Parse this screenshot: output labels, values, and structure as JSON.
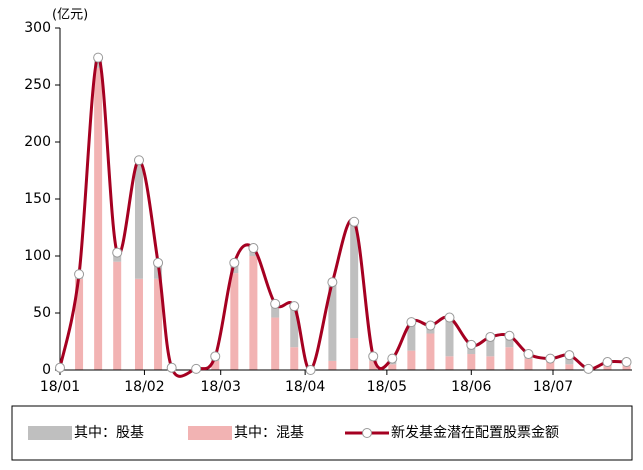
{
  "chart_data": {
    "type": "stacked_bar_line",
    "unit_label": "(亿元)",
    "x": [
      0,
      7,
      14,
      21,
      29,
      36,
      41,
      50,
      57,
      64,
      71,
      79,
      86,
      92,
      100,
      108,
      115,
      122,
      129,
      136,
      143,
      151,
      158,
      165,
      172,
      180,
      187,
      194,
      201,
      208
    ],
    "xlim": [
      0,
      210
    ],
    "xticks": [
      {
        "value": 0,
        "label": "18/01"
      },
      {
        "value": 31,
        "label": "18/02"
      },
      {
        "value": 59,
        "label": "18/03"
      },
      {
        "value": 90,
        "label": "18/04"
      },
      {
        "value": 120,
        "label": "18/05"
      },
      {
        "value": 151,
        "label": "18/06"
      },
      {
        "value": 181,
        "label": "18/07"
      }
    ],
    "ylim": [
      0,
      300
    ],
    "yticks": [
      0,
      50,
      100,
      150,
      200,
      250,
      300
    ],
    "series": [
      {
        "name": "其中：混基",
        "color": "#f2b3b3",
        "kind": "bar",
        "values": [
          1,
          80,
          265,
          95,
          80,
          80,
          1,
          0,
          8,
          85,
          100,
          46,
          20,
          0,
          8,
          28,
          8,
          5,
          17,
          32,
          12,
          14,
          12,
          20,
          10,
          8,
          5,
          0,
          4,
          4
        ]
      },
      {
        "name": "其中：股基",
        "color": "#bfbfbf",
        "kind": "bar",
        "values": [
          1,
          4,
          9,
          8,
          104,
          14,
          1,
          1,
          4,
          9,
          7,
          12,
          36,
          0,
          69,
          102,
          4,
          5,
          25,
          7,
          34,
          8,
          17,
          10,
          4,
          2,
          8,
          1,
          3,
          3
        ]
      },
      {
        "name": "新发基金潜在配置股票金额",
        "color": "#a50021",
        "kind": "line",
        "values": [
          2,
          84,
          274,
          103,
          184,
          94,
          2,
          1,
          12,
          94,
          107,
          58,
          56,
          0,
          77,
          130,
          12,
          10,
          42,
          39,
          46,
          22,
          29,
          30,
          14,
          10,
          13,
          1,
          7,
          7
        ]
      }
    ]
  }
}
